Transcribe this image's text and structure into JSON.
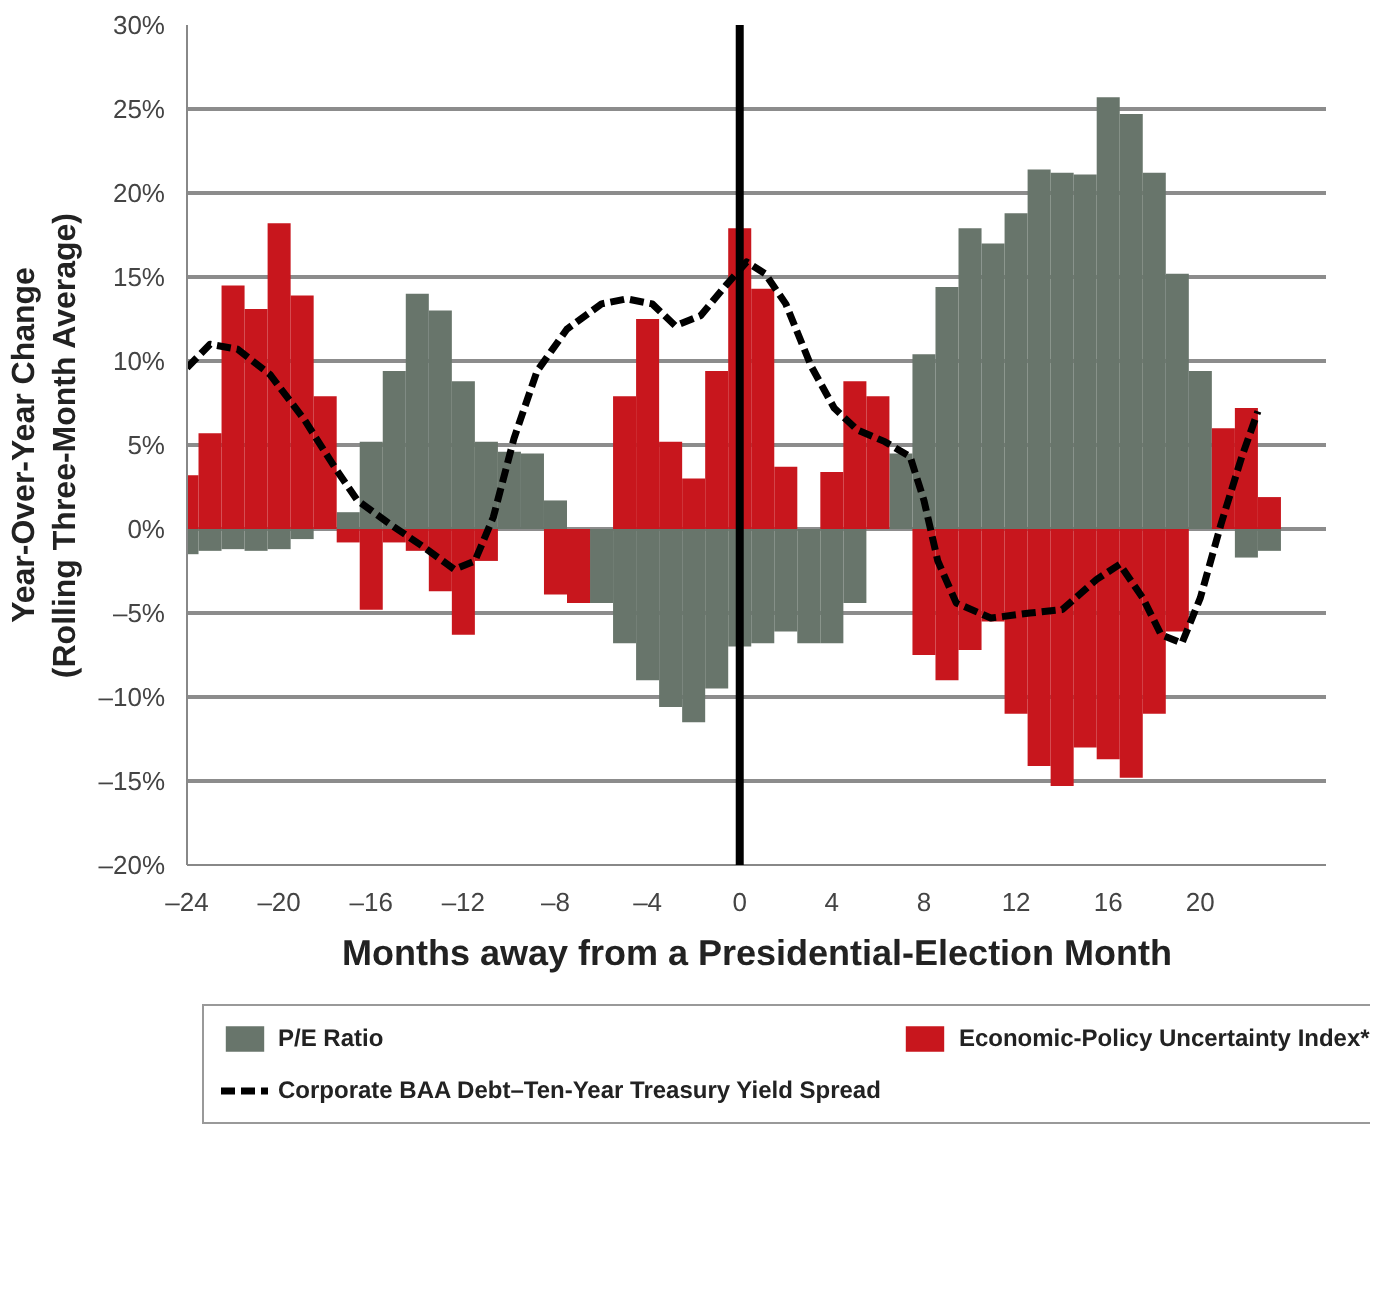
{
  "chart_data": {
    "type": "bar",
    "xlabel": "Months away from a Presidential-Election Month",
    "ylabel": "Year-Over-Year Change\n(Rolling Three-Month Average)",
    "x": [
      -24,
      -23,
      -22,
      -21,
      -20,
      -19,
      -18,
      -17,
      -16,
      -15,
      -14,
      -13,
      -12,
      -11,
      -10,
      -9,
      -8,
      -7,
      -6,
      -5,
      -4,
      -3,
      -2,
      -1,
      0,
      1,
      2,
      3,
      4,
      5,
      6,
      7,
      8,
      9,
      10,
      11,
      12,
      13,
      14,
      15,
      16,
      17,
      18,
      19,
      20,
      21,
      22,
      23
    ],
    "series": [
      {
        "name": "P/E Ratio",
        "color": "#68756b",
        "values": [
          -1.5,
          -1.3,
          -1.2,
          -1.3,
          -1.2,
          -0.6,
          null,
          1.0,
          5.2,
          9.4,
          14.0,
          13.0,
          8.8,
          5.2,
          4.6,
          4.5,
          1.7,
          null,
          -4.4,
          -6.8,
          -9.0,
          -10.6,
          -11.5,
          -9.5,
          -7.0,
          -6.8,
          -6.1,
          -6.8,
          -6.8,
          -4.4,
          null,
          4.5,
          10.4,
          14.4,
          17.9,
          17.0,
          18.8,
          21.4,
          21.2,
          21.1,
          25.7,
          24.7,
          21.2,
          15.2,
          9.4,
          null,
          -1.7,
          -1.3
        ]
      },
      {
        "name": "Economic-Policy Uncertainty Index*",
        "color": "#c8161d",
        "values": [
          3.2,
          5.7,
          14.5,
          13.1,
          18.2,
          13.9,
          7.9,
          -0.8,
          -4.8,
          -0.8,
          -1.3,
          -3.7,
          -6.3,
          -1.9,
          null,
          null,
          -3.9,
          -4.4,
          null,
          7.9,
          12.5,
          5.2,
          3.0,
          9.4,
          17.9,
          14.3,
          3.7,
          null,
          3.4,
          8.8,
          7.9,
          null,
          -7.5,
          -9.0,
          -7.2,
          -5.5,
          -11.0,
          -14.1,
          -15.3,
          -13.0,
          -13.7,
          -14.8,
          -11.0,
          -6.1,
          null,
          6.0,
          7.2,
          1.9
        ]
      },
      {
        "name": "Corporate BAA Debt–Ten-Year Treasury Yield Spread",
        "type": "line",
        "line_style": "dashed",
        "color": "#000000",
        "x": [
          -24.0,
          -23.0,
          -21.8,
          -20.4,
          -18.9,
          -17.6,
          -16.6,
          -15.2,
          -13.8,
          -12.4,
          -11.5,
          -10.7,
          -9.8,
          -8.8,
          -7.5,
          -6.0,
          -4.9,
          -3.8,
          -2.8,
          -1.7,
          -0.6,
          0.3,
          1.1,
          2.0,
          3.1,
          4.1,
          5.1,
          6.3,
          7.4,
          8.0,
          8.6,
          9.4,
          10.9,
          12.6,
          14.0,
          15.5,
          16.5,
          17.5,
          18.3,
          19.2,
          20.0,
          20.9,
          21.8,
          22.5
        ],
        "values": [
          9.6,
          11.0,
          10.7,
          9.2,
          6.5,
          3.7,
          1.7,
          0.3,
          -1.0,
          -2.4,
          -1.9,
          0.7,
          5.4,
          9.4,
          11.9,
          13.4,
          13.7,
          13.4,
          12.1,
          12.7,
          14.5,
          15.9,
          15.2,
          13.4,
          9.7,
          7.2,
          5.9,
          5.2,
          4.3,
          1.7,
          -1.9,
          -4.4,
          -5.3,
          -5.0,
          -4.8,
          -3.0,
          -2.1,
          -4.1,
          -6.3,
          -6.8,
          -4.1,
          0.3,
          4.3,
          7.0
        ]
      }
    ],
    "xlim": [
      -24,
      25.5
    ],
    "ylim": [
      -20,
      30
    ],
    "xticks": [
      {
        "value": -24,
        "label": "–24"
      },
      {
        "value": -20,
        "label": "–20"
      },
      {
        "value": -16,
        "label": "–16"
      },
      {
        "value": -12,
        "label": "–12"
      },
      {
        "value": -8,
        "label": "–8"
      },
      {
        "value": -4,
        "label": "–4"
      },
      0,
      4,
      8,
      12,
      16,
      20
    ],
    "yticks": [
      {
        "value": -20,
        "label": "–20%"
      },
      {
        "value": -15,
        "label": "–15%"
      },
      {
        "value": -10,
        "label": "–10%"
      },
      {
        "value": -5,
        "label": "–5%"
      },
      {
        "value": 0,
        "label": "0%"
      },
      {
        "value": 5,
        "label": "5%"
      },
      {
        "value": 10,
        "label": "10%"
      },
      {
        "value": 15,
        "label": "15%"
      },
      {
        "value": 20,
        "label": "20%"
      },
      {
        "value": 25,
        "label": "25%"
      },
      {
        "value": 30,
        "label": "30%"
      }
    ],
    "ref_lines": [
      {
        "axis": "x",
        "value": 0,
        "color": "#000000"
      }
    ],
    "grid": "y",
    "legend": "bottom",
    "stacked": true
  }
}
